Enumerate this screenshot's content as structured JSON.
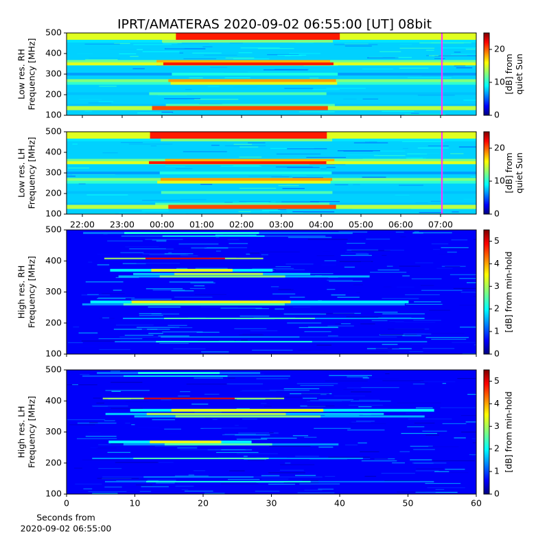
{
  "title": "IPRT/AMATERAS 2020-09-02 06:55:00 [UT]   08bit",
  "chart_data": [
    {
      "type": "heatmap",
      "ylabel": [
        "Low res. RH",
        "Frequency [MHz]"
      ],
      "ylim": [
        100,
        500
      ],
      "yticks": [
        100,
        200,
        300,
        400,
        500
      ],
      "colorbar": {
        "label": [
          "[dB] from",
          "quiet Sun"
        ],
        "lim": [
          0,
          25
        ],
        "ticks": [
          0,
          10,
          20
        ]
      }
    },
    {
      "type": "heatmap",
      "ylabel": [
        "Low res. LH",
        "Frequency [MHz]"
      ],
      "ylim": [
        100,
        500
      ],
      "yticks": [
        100,
        200,
        300,
        400,
        500
      ],
      "xticks": [
        "22:00",
        "23:00",
        "00:00",
        "01:00",
        "02:00",
        "03:00",
        "04:00",
        "05:00",
        "06:00",
        "07:00"
      ],
      "colorbar": {
        "label": [
          "[dB] from",
          "quiet Sun"
        ],
        "lim": [
          0,
          25
        ],
        "ticks": [
          0,
          10,
          20
        ]
      }
    },
    {
      "type": "heatmap",
      "ylabel": [
        "High res. RH",
        "Frequency [MHz]"
      ],
      "ylim": [
        100,
        500
      ],
      "yticks": [
        100,
        200,
        300,
        400,
        500
      ],
      "colorbar": {
        "label": [
          "[dB] from min-hold"
        ],
        "lim": [
          0,
          5.5
        ],
        "ticks": [
          0,
          1,
          2,
          3,
          4,
          5
        ]
      }
    },
    {
      "type": "heatmap",
      "ylabel": [
        "High res. LH",
        "Frequency [MHz]"
      ],
      "ylim": [
        100,
        500
      ],
      "yticks": [
        100,
        200,
        300,
        400,
        500
      ],
      "xlabel": [
        "Seconds from",
        "2020-09-02 06:55:00"
      ],
      "xlim": [
        0,
        60
      ],
      "xticks": [
        0,
        10,
        20,
        30,
        40,
        50,
        60
      ],
      "colorbar": {
        "label": [
          "[dB] from min-hold"
        ],
        "lim": [
          0,
          5.5
        ],
        "ticks": [
          0,
          1,
          2,
          3,
          4,
          5
        ]
      }
    }
  ]
}
